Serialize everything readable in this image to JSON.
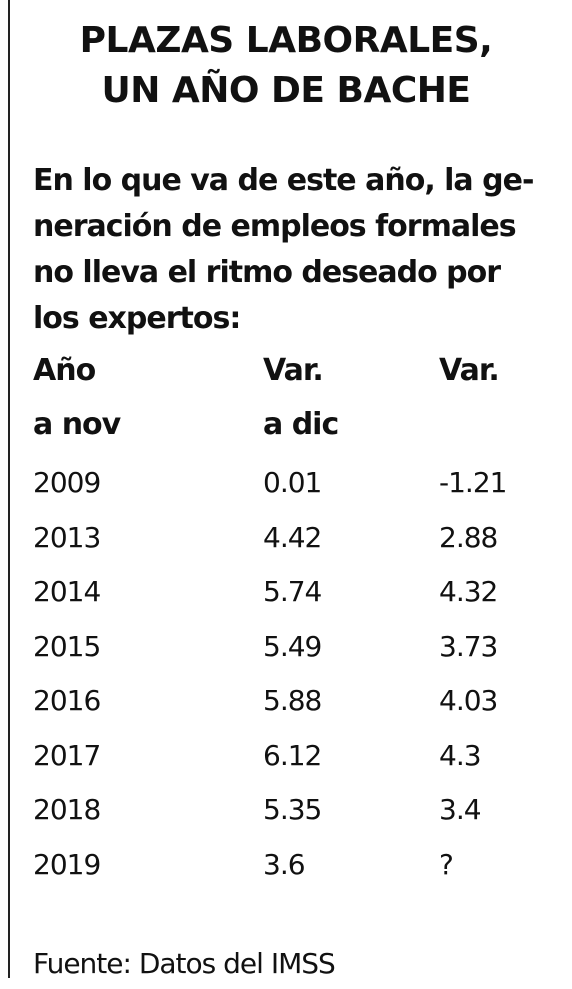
{
  "title": {
    "line1": "PLAZAS LABORALES,",
    "line2": "UN AÑO DE BACHE"
  },
  "intro": {
    "line1": "En lo que va de este año, la ge-",
    "line2": "neración de empleos formales",
    "line3": "no lleva el ritmo deseado por",
    "line4": "los expertos:"
  },
  "table": {
    "header_row1": [
      "Año",
      "Var.",
      "Var."
    ],
    "header_row2": [
      "a nov",
      "a dic",
      ""
    ],
    "rows": [
      [
        "2009",
        "0.01",
        "-1.21"
      ],
      [
        "2013",
        "4.42",
        "2.88"
      ],
      [
        "2014",
        "5.74",
        "4.32"
      ],
      [
        "2015",
        "5.49",
        "3.73"
      ],
      [
        "2016",
        "5.88",
        "4.03"
      ],
      [
        "2017",
        "6.12",
        "4.3"
      ],
      [
        "2018",
        "5.35",
        "3.4"
      ],
      [
        "2019",
        "3.6",
        "?"
      ]
    ]
  },
  "source": "Fuente: Datos del IMSS"
}
